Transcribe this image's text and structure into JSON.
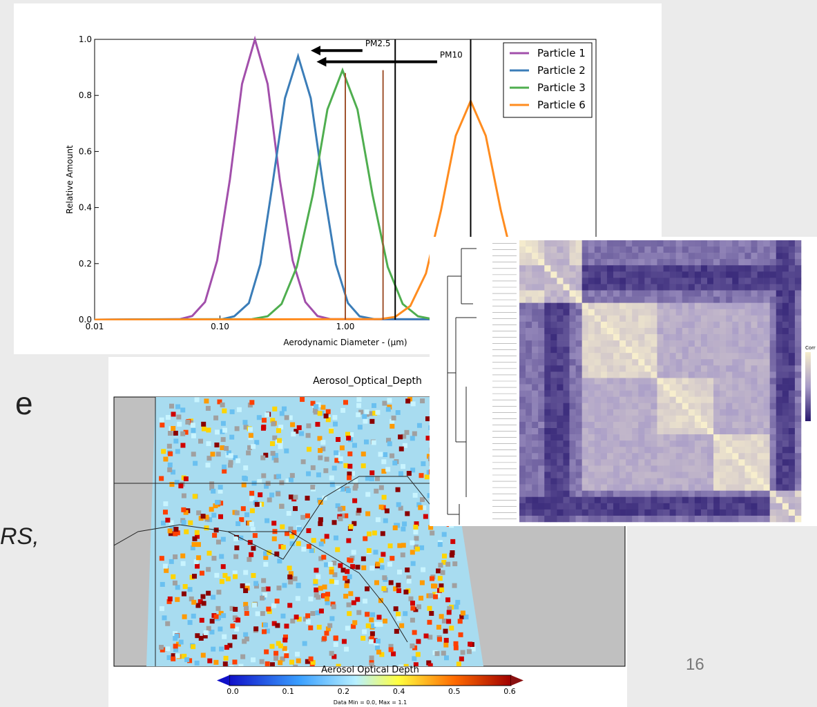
{
  "slide": {
    "text_fragments": [
      "e",
      "RS,"
    ],
    "page_number": "16"
  },
  "chart_data": {
    "type": "line",
    "xscale": "log",
    "xlabel": "Aerodynamic Diameter - (μm)",
    "ylabel": "Relative Amount",
    "xlim": [
      0.01,
      100
    ],
    "ylim": [
      0,
      1
    ],
    "xticks": [
      0.01,
      {
        "value": 0.1,
        "label": "0.10"
      },
      {
        "value": 1,
        "label": "1.00"
      }
    ],
    "yticks": [
      {
        "value": 0,
        "label": "0.0"
      },
      0.2,
      0.4,
      0.6,
      0.8,
      {
        "value": 1,
        "label": "1.0"
      }
    ],
    "legend": "upper right",
    "series": [
      {
        "name": "Particle 1",
        "color": "#a24fab",
        "x": [
          0.01,
          0.048,
          0.06,
          0.076,
          0.095,
          0.12,
          0.15,
          0.19,
          0.24,
          0.3,
          0.38,
          0.48,
          0.6,
          0.76,
          100
        ],
        "values": [
          0,
          0.002,
          0.013,
          0.063,
          0.211,
          0.5,
          0.841,
          1,
          0.841,
          0.5,
          0.211,
          0.063,
          0.013,
          0.002,
          0
        ]
      },
      {
        "name": "Particle 2",
        "color": "#3b7db8",
        "x": [
          0.01,
          0.105,
          0.13,
          0.17,
          0.21,
          0.26,
          0.33,
          0.42,
          0.53,
          0.67,
          0.84,
          1.05,
          1.3,
          1.7,
          100
        ],
        "values": [
          0,
          0.002,
          0.012,
          0.059,
          0.198,
          0.47,
          0.79,
          0.94,
          0.79,
          0.47,
          0.198,
          0.059,
          0.012,
          0.002,
          0
        ]
      },
      {
        "name": "Particle 3",
        "color": "#4fae4f",
        "x": [
          0.01,
          0.18,
          0.24,
          0.31,
          0.41,
          0.55,
          0.72,
          0.95,
          1.25,
          1.65,
          2.18,
          2.87,
          3.8,
          5.0,
          100
        ],
        "values": [
          0,
          0.002,
          0.012,
          0.056,
          0.188,
          0.445,
          0.75,
          0.89,
          0.75,
          0.445,
          0.188,
          0.056,
          0.012,
          0.002,
          0
        ]
      },
      {
        "name": "Particle 6",
        "color": "#ff8c1f",
        "x": [
          0.01,
          1.9,
          2.5,
          3.3,
          4.4,
          5.8,
          7.6,
          10,
          13.2,
          17.4,
          23,
          30,
          40,
          52,
          100
        ],
        "values": [
          0,
          0.002,
          0.01,
          0.049,
          0.165,
          0.39,
          0.656,
          0.78,
          0.656,
          0.39,
          0.165,
          0.049,
          0.01,
          0.002,
          0
        ]
      }
    ],
    "reference_lines": [
      {
        "x": 1,
        "ymax": 0.88,
        "color": "#a0522d"
      },
      {
        "x": 2,
        "ymax": 0.89,
        "color": "#a0522d"
      },
      {
        "x": 2.5,
        "ymax": 1,
        "color": "#000000"
      },
      {
        "x": 10,
        "ymax": 1,
        "color": "#000000"
      }
    ],
    "annotations": [
      {
        "text": "PM2.5",
        "x_from": 1.37,
        "x_to": 0.53,
        "y": 0.96
      },
      {
        "text": "PM10",
        "x_from": 5.4,
        "x_to": 0.59,
        "y": 0.92
      }
    ]
  },
  "map": {
    "title": "Aerosol_Optical_Depth",
    "colorbar_title": "Aerosol Optical Depth",
    "colorbar_labels": [
      "0.0",
      "0.1",
      "0.2",
      "0.4",
      "0.5",
      "0.6"
    ],
    "footnote": "Data Min = 0.0, Max = 1.1"
  },
  "heatmap": {
    "colorbar_title": "Corr"
  }
}
